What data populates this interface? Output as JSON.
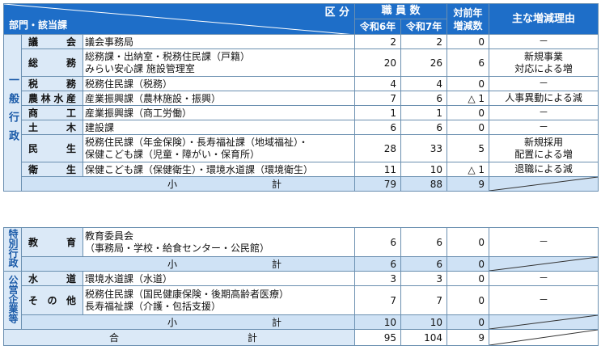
{
  "header": {
    "kubun": "区 分",
    "bumon": "部門・該当課",
    "shokuin": "職 員 数",
    "r6": "令和6年",
    "r7": "令和7年",
    "change": "対前年\n増減数",
    "reason": "主な増減理由"
  },
  "groups": {
    "general": "一般行政",
    "special": "特別行政",
    "public": "公営企業等"
  },
  "rows": [
    {
      "dept": "議　会",
      "sections": [
        "議会事務局"
      ],
      "r6": "2",
      "r7": "2",
      "change": "0",
      "reason": [
        "－"
      ]
    },
    {
      "dept": "総　務",
      "sections": [
        "総務課・出納室・税務住民課（戸籍）",
        "みらい安心課 施設管理室"
      ],
      "r6": "20",
      "r7": "26",
      "change": "6",
      "reason": [
        "新規事業",
        "対応による増"
      ]
    },
    {
      "dept": "税　務",
      "sections": [
        "税務住民課（税務）"
      ],
      "r6": "4",
      "r7": "4",
      "change": "0",
      "reason": [
        "－"
      ]
    },
    {
      "dept": "農林水産",
      "sections": [
        "産業振興課（農林施設・振興）"
      ],
      "r6": "7",
      "r7": "6",
      "change": "△ 1",
      "reason": [
        "人事異動による減"
      ]
    },
    {
      "dept": "商　工",
      "sections": [
        "産業振興課（商工労働）"
      ],
      "r6": "1",
      "r7": "1",
      "change": "0",
      "reason": [
        "－"
      ]
    },
    {
      "dept": "土　木",
      "sections": [
        "建設課"
      ],
      "r6": "6",
      "r7": "6",
      "change": "0",
      "reason": [
        "－"
      ]
    },
    {
      "dept": "民　生",
      "sections": [
        "税務住民課（年金保険）・長寿福祉課（地域福祉）・",
        "保健こども課（児童・障がい・保育所）"
      ],
      "r6": "28",
      "r7": "33",
      "change": "5",
      "reason": [
        "新規採用",
        "配置による増"
      ]
    },
    {
      "dept": "衛　生",
      "sections": [
        "保健こども課（保健衛生）・環境水道課（環境衛生）"
      ],
      "r6": "11",
      "r7": "10",
      "change": "△ 1",
      "reason": [
        "退職による減"
      ]
    }
  ],
  "subtotal_general": {
    "label": "小　計",
    "r6": "79",
    "r7": "88",
    "change": "9"
  },
  "special_row": {
    "dept": "教　育",
    "sections": [
      "教育委員会",
      "（事務局・学校・給食センター・公民館）"
    ],
    "r6": "6",
    "r7": "6",
    "change": "0",
    "reason": [
      "－"
    ]
  },
  "subtotal_special": {
    "label": "小　計",
    "r6": "6",
    "r7": "6",
    "change": "0"
  },
  "public_rows": [
    {
      "dept": "水　道",
      "sections": [
        "環境水道課（水道）"
      ],
      "r6": "3",
      "r7": "3",
      "change": "0",
      "reason": [
        "－"
      ]
    },
    {
      "dept": "そ の 他",
      "sections": [
        "税務住民課（国民健康保険・後期高齢者医療）",
        "長寿福祉課（介護・包括支援）"
      ],
      "r6": "7",
      "r7": "7",
      "change": "0",
      "reason": [
        "－"
      ]
    }
  ],
  "subtotal_public": {
    "label": "小　計",
    "r6": "10",
    "r7": "10",
    "change": "0"
  },
  "total": {
    "label": "合　計",
    "r6": "95",
    "r7": "104",
    "change": "9"
  }
}
